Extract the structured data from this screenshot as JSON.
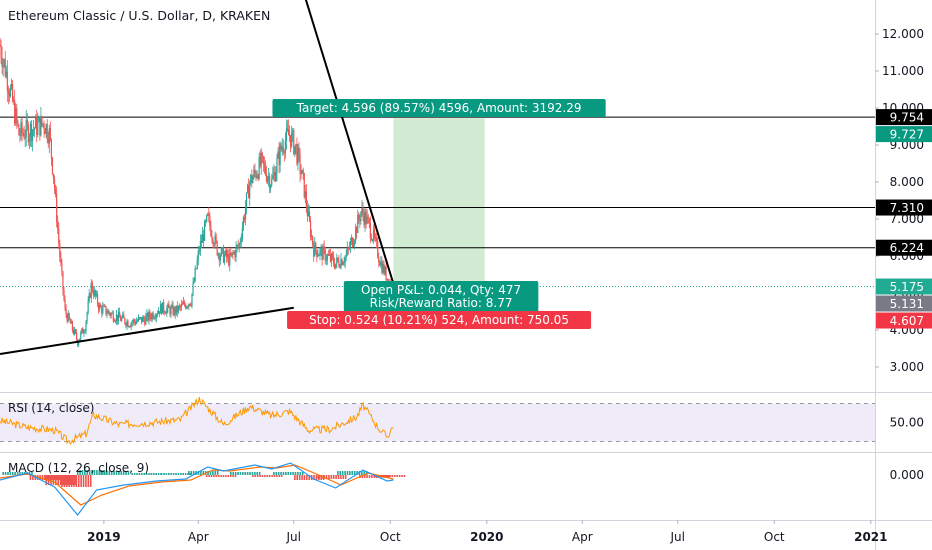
{
  "chart_data": {
    "title": "Ethereum Classic / U.S. Dollar, D, KRAKEN",
    "type": "candlestick",
    "x_range": [
      "2018-09-24",
      "2021-01-05"
    ],
    "x_ticks": [
      {
        "label": "2019",
        "date": "2019-01-01",
        "bold": true
      },
      {
        "label": "Apr",
        "date": "2019-04-01",
        "bold": false
      },
      {
        "label": "Jul",
        "date": "2019-07-01",
        "bold": false
      },
      {
        "label": "Oct",
        "date": "2019-10-01",
        "bold": false
      },
      {
        "label": "2020",
        "date": "2020-01-01",
        "bold": true
      },
      {
        "label": "Apr",
        "date": "2020-04-01",
        "bold": false
      },
      {
        "label": "Jul",
        "date": "2020-07-01",
        "bold": false
      },
      {
        "label": "Oct",
        "date": "2020-10-01",
        "bold": false
      },
      {
        "label": "2021",
        "date": "2021-01-01",
        "bold": true
      }
    ],
    "price_axis": {
      "range": [
        2.5,
        12.6
      ],
      "ticks": [
        {
          "value": 3,
          "label": "3.000"
        },
        {
          "value": 4,
          "label": "4.000"
        },
        {
          "value": 5,
          "label": "5.000"
        },
        {
          "value": 6,
          "label": "6.000"
        },
        {
          "value": 7,
          "label": "7.000"
        },
        {
          "value": 8,
          "label": "8.000"
        },
        {
          "value": 9,
          "label": "9.000"
        },
        {
          "value": 10,
          "label": "10.000"
        },
        {
          "value": 11,
          "label": "11.000"
        },
        {
          "value": 12,
          "label": "12.000"
        }
      ]
    },
    "price_path": [
      [
        "2018-09-24",
        11.7
      ],
      [
        "2018-10-05",
        10.3
      ],
      [
        "2018-10-12",
        9.3
      ],
      [
        "2018-10-22",
        9.4
      ],
      [
        "2018-11-05",
        9.6
      ],
      [
        "2018-11-10",
        9.3
      ],
      [
        "2018-11-14",
        8.2
      ],
      [
        "2018-11-20",
        6.0
      ],
      [
        "2018-11-25",
        4.5
      ],
      [
        "2018-12-07",
        3.7
      ],
      [
        "2018-12-14",
        4.1
      ],
      [
        "2018-12-20",
        5.2
      ],
      [
        "2018-12-28",
        4.6
      ],
      [
        "2019-01-10",
        4.4
      ],
      [
        "2019-01-25",
        4.2
      ],
      [
        "2019-02-10",
        4.3
      ],
      [
        "2019-02-25",
        4.6
      ],
      [
        "2019-03-10",
        4.5
      ],
      [
        "2019-03-25",
        4.8
      ],
      [
        "2019-04-02",
        6.2
      ],
      [
        "2019-04-10",
        7.0
      ],
      [
        "2019-04-20",
        6.1
      ],
      [
        "2019-05-01",
        5.9
      ],
      [
        "2019-05-10",
        6.3
      ],
      [
        "2019-05-20",
        8.0
      ],
      [
        "2019-05-31",
        8.5
      ],
      [
        "2019-06-10",
        8.0
      ],
      [
        "2019-06-20",
        9.0
      ],
      [
        "2019-06-27",
        9.3
      ],
      [
        "2019-07-03",
        8.9
      ],
      [
        "2019-07-10",
        8.0
      ],
      [
        "2019-07-15",
        7.0
      ],
      [
        "2019-07-20",
        6.2
      ],
      [
        "2019-08-01",
        6.0
      ],
      [
        "2019-08-10",
        5.8
      ],
      [
        "2019-08-20",
        6.0
      ],
      [
        "2019-08-28",
        6.6
      ],
      [
        "2019-09-03",
        7.2
      ],
      [
        "2019-09-08",
        7.0
      ],
      [
        "2019-09-15",
        6.5
      ],
      [
        "2019-09-22",
        5.8
      ],
      [
        "2019-10-02",
        5.18
      ]
    ],
    "lines": [
      {
        "from": [
          "2019-06-20",
          15.0
        ],
        "to": [
          "2019-10-04",
          5.25
        ]
      },
      {
        "from": [
          "2018-09-24",
          3.35
        ],
        "to": [
          "2019-07-01",
          4.6
        ]
      }
    ],
    "horizontal_levels": [
      {
        "value": 9.754,
        "label": "9.754",
        "color": "#000000"
      },
      {
        "value": 7.31,
        "label": "7.310",
        "color": "#000000"
      },
      {
        "value": 6.224,
        "label": "6.224",
        "color": "#000000"
      }
    ],
    "position": {
      "entry": 5.131,
      "target": 9.727,
      "stop": 4.607,
      "last": 5.175,
      "start": "2019-10-04",
      "end": "2019-12-30",
      "target_text": "Target: 4.596 (89.57%) 4596, Amount: 3192.29",
      "stop_text": "Stop: 0.524 (10.21%) 524, Amount: 750.05",
      "pnl_text": "Open P&L: 0.044, Qty: 477",
      "rr_text": "Risk/Reward Ratio: 8.77"
    },
    "price_labels": [
      {
        "label": "9.754",
        "value": 9.754,
        "color": "#000000"
      },
      {
        "label": "9.727",
        "value": 9.727,
        "color": "#089981"
      },
      {
        "label": "7.310",
        "value": 7.31,
        "color": "#000000"
      },
      {
        "label": "6.224",
        "value": 6.224,
        "color": "#000000"
      },
      {
        "label": "5.175",
        "value": 5.175,
        "color": "#22ab94"
      },
      {
        "label": "5.131",
        "value": 5.131,
        "color": "#787b86"
      },
      {
        "label": "4.607",
        "value": 4.607,
        "color": "#f23645"
      }
    ],
    "rsi": {
      "label": "RSI (14, close)",
      "tick": {
        "value": 50,
        "label": "50.00"
      },
      "band": [
        30,
        70
      ],
      "range": [
        20,
        80
      ],
      "path": [
        [
          "2018-09-24",
          52
        ],
        [
          "2018-10-20",
          45
        ],
        [
          "2018-11-15",
          42
        ],
        [
          "2018-11-28",
          30
        ],
        [
          "2018-12-15",
          38
        ],
        [
          "2018-12-22",
          58
        ],
        [
          "2019-01-15",
          48
        ],
        [
          "2019-02-15",
          50
        ],
        [
          "2019-03-15",
          53
        ],
        [
          "2019-04-02",
          75
        ],
        [
          "2019-04-25",
          48
        ],
        [
          "2019-05-20",
          67
        ],
        [
          "2019-06-10",
          57
        ],
        [
          "2019-06-27",
          62
        ],
        [
          "2019-07-15",
          42
        ],
        [
          "2019-08-05",
          43
        ],
        [
          "2019-08-30",
          56
        ],
        [
          "2019-09-05",
          68
        ],
        [
          "2019-09-20",
          44
        ],
        [
          "2019-09-28",
          35
        ],
        [
          "2019-10-04",
          47
        ]
      ]
    },
    "macd": {
      "label": "MACD (12, 26, close, 9)",
      "tick": {
        "value": 0,
        "label": "0.000"
      },
      "range": [
        -0.45,
        0.22
      ],
      "macd_line": [
        [
          "2018-09-24",
          -0.05
        ],
        [
          "2018-10-20",
          0.02
        ],
        [
          "2018-11-15",
          -0.12
        ],
        [
          "2018-12-07",
          -0.4
        ],
        [
          "2018-12-25",
          -0.15
        ],
        [
          "2019-01-20",
          -0.1
        ],
        [
          "2019-02-20",
          -0.06
        ],
        [
          "2019-03-20",
          -0.04
        ],
        [
          "2019-04-10",
          0.08
        ],
        [
          "2019-04-25",
          0.04
        ],
        [
          "2019-05-25",
          0.1
        ],
        [
          "2019-06-10",
          0.06
        ],
        [
          "2019-06-28",
          0.12
        ],
        [
          "2019-07-20",
          -0.04
        ],
        [
          "2019-08-10",
          -0.13
        ],
        [
          "2019-09-05",
          0.05
        ],
        [
          "2019-09-28",
          -0.06
        ],
        [
          "2019-10-04",
          -0.05
        ]
      ],
      "signal_line": [
        [
          "2018-09-24",
          -0.03
        ],
        [
          "2018-10-20",
          0.01
        ],
        [
          "2018-11-15",
          -0.07
        ],
        [
          "2018-12-10",
          -0.3
        ],
        [
          "2018-12-30",
          -0.2
        ],
        [
          "2019-01-25",
          -0.11
        ],
        [
          "2019-02-25",
          -0.07
        ],
        [
          "2019-03-25",
          -0.05
        ],
        [
          "2019-04-15",
          0.05
        ],
        [
          "2019-05-01",
          0.04
        ],
        [
          "2019-05-30",
          0.08
        ],
        [
          "2019-06-15",
          0.07
        ],
        [
          "2019-07-02",
          0.1
        ],
        [
          "2019-07-25",
          0.0
        ],
        [
          "2019-08-15",
          -0.1
        ],
        [
          "2019-09-10",
          0.02
        ],
        [
          "2019-10-04",
          -0.04
        ]
      ],
      "histogram": [
        [
          "2018-10-10",
          0.03
        ],
        [
          "2018-11-05",
          -0.05
        ],
        [
          "2018-11-20",
          -0.1
        ],
        [
          "2018-12-05",
          -0.12
        ],
        [
          "2018-12-20",
          0.05
        ],
        [
          "2019-01-10",
          0.04
        ],
        [
          "2019-02-10",
          0.02
        ],
        [
          "2019-03-10",
          0.02
        ],
        [
          "2019-04-05",
          0.04
        ],
        [
          "2019-04-22",
          -0.02
        ],
        [
          "2019-05-15",
          0.03
        ],
        [
          "2019-06-05",
          -0.02
        ],
        [
          "2019-06-25",
          0.03
        ],
        [
          "2019-07-15",
          -0.05
        ],
        [
          "2019-08-05",
          -0.04
        ],
        [
          "2019-08-25",
          0.04
        ],
        [
          "2019-09-15",
          -0.03
        ],
        [
          "2019-09-30",
          -0.02
        ]
      ]
    }
  },
  "colors": {
    "up": "#26a69a",
    "down": "#ef5350",
    "rsi_line": "#ff9800",
    "rsi_band": "#7e57c2",
    "macd_line": "#2196f3",
    "signal_line": "#ff6d00",
    "target_zone": "#4caf50",
    "target_label": "#089981",
    "stop_label": "#f23645",
    "entry_line": "#22ab94"
  }
}
